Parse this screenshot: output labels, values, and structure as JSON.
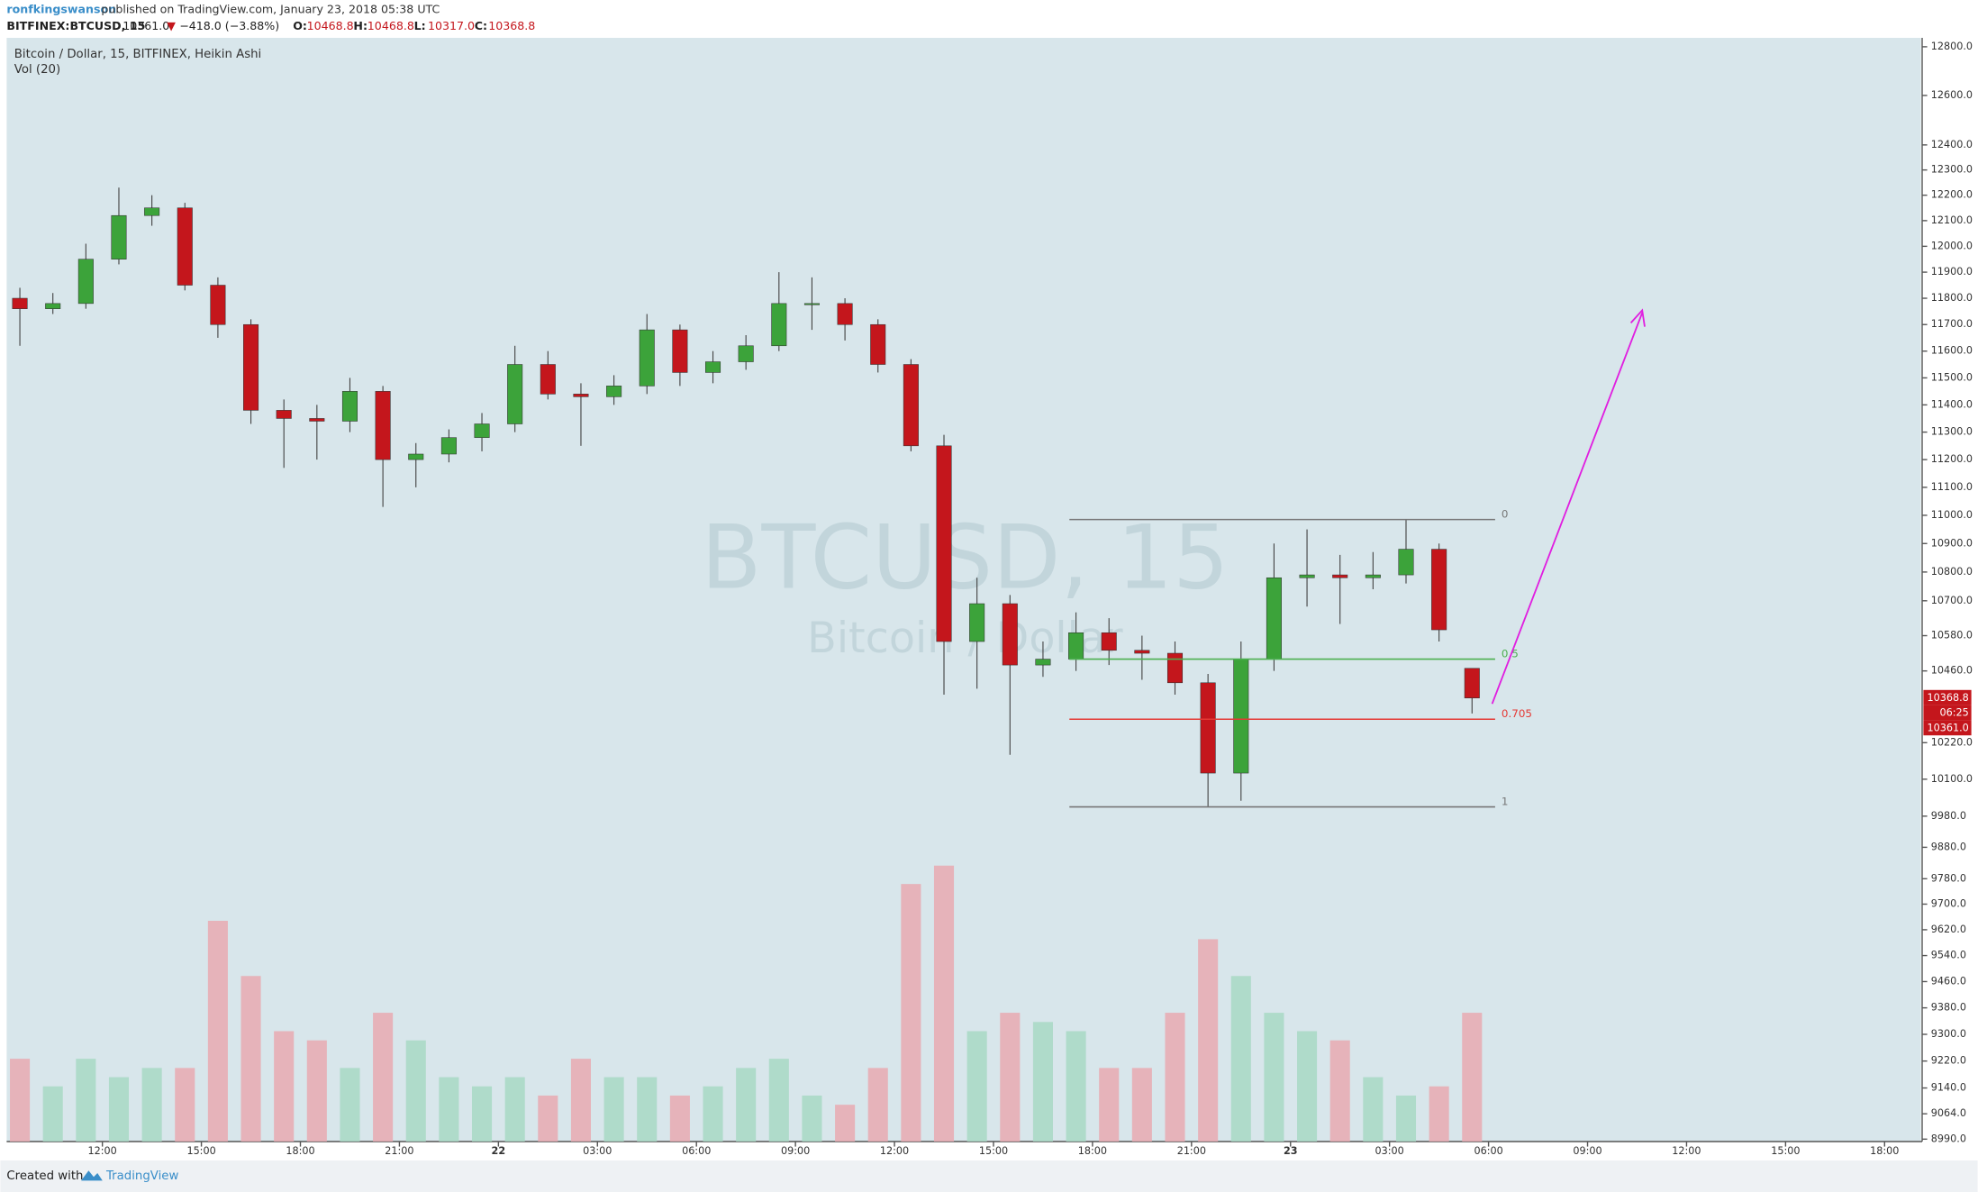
{
  "header": {
    "user": "ronfkingswanson",
    "published": "published on TradingView.com, January 23, 2018 05:38 UTC",
    "symbol": "BITFINEX:BTCUSD, 15",
    "last": "10361.0",
    "arrow": "▼",
    "change": "−418.0 (−3.88%)",
    "ohlc": [
      [
        "O:",
        "10468.8"
      ],
      [
        "H:",
        "10468.8"
      ],
      [
        "L:",
        "10317.0"
      ],
      [
        "C:",
        "10368.8"
      ]
    ]
  },
  "footer": {
    "created": "Created with",
    "brand": "TradingView"
  },
  "chart_data": {
    "type": "candlestick",
    "title": "Bitcoin / Dollar, 15, BITFINEX, Heikin Ashi",
    "subtitle": "Vol (20)",
    "watermark": "BTCUSD, 15",
    "watermark_sub": "Bitcoin / Dollar",
    "x": [
      9.5,
      10.5,
      11.5,
      12.5,
      13.5,
      14.5,
      15.5,
      16.5,
      17.5,
      18.5,
      19.5,
      20.5,
      21.5,
      22.5,
      23.5,
      24.5,
      25.5,
      26.5,
      27.5,
      28.5,
      29.5,
      30.5,
      31.5,
      32.5,
      33.5,
      34.5,
      35.5,
      36.5,
      37.5,
      38.5,
      39.5,
      40.5,
      41.5,
      42.5,
      43.5,
      44.5,
      45.5,
      46.5,
      47.5,
      48.5,
      49.5,
      50.5,
      51.5,
      52.5,
      53.5
    ],
    "open": [
      11800,
      11760,
      11780,
      11950,
      12120,
      12150,
      11850,
      11700,
      11380,
      11350,
      11340,
      11450,
      11200,
      11220,
      11280,
      11330,
      11550,
      11440,
      11430,
      11470,
      11680,
      11520,
      11560,
      11620,
      11780,
      11780,
      11700,
      11550,
      11250,
      10560,
      10690,
      10480,
      10500,
      10590,
      10530,
      10520,
      10420,
      10120,
      10500,
      10780,
      10790,
      10780,
      10790,
      10880,
      10468.8
    ],
    "high": [
      11840,
      11820,
      12010,
      12230,
      12200,
      12170,
      11880,
      11720,
      11420,
      11400,
      11500,
      11470,
      11260,
      11310,
      11370,
      11620,
      11600,
      11480,
      11510,
      11740,
      11700,
      11600,
      11660,
      11900,
      11880,
      11800,
      11720,
      11570,
      11290,
      10780,
      10720,
      10560,
      10660,
      10640,
      10580,
      10560,
      10450,
      10560,
      10900,
      10950,
      10860,
      10870,
      10985,
      10900,
      10468.8
    ],
    "low": [
      11620,
      11740,
      11760,
      11930,
      12080,
      11830,
      11650,
      11330,
      11170,
      11200,
      11300,
      11030,
      11100,
      11190,
      11230,
      11300,
      11420,
      11250,
      11400,
      11440,
      11470,
      11480,
      11530,
      11600,
      11680,
      11640,
      11520,
      11230,
      10380,
      10400,
      10180,
      10440,
      10460,
      10480,
      10430,
      10380,
      10010,
      10030,
      10460,
      10680,
      10620,
      10740,
      10760,
      10560,
      10317
    ],
    "close": [
      11760,
      11780,
      11950,
      12120,
      12150,
      11850,
      11700,
      11380,
      11350,
      11340,
      11450,
      11200,
      11220,
      11280,
      11330,
      11550,
      11440,
      11430,
      11470,
      11680,
      11520,
      11560,
      11620,
      11780,
      11780,
      11700,
      11550,
      11250,
      10560,
      10690,
      10480,
      10500,
      10590,
      10530,
      10520,
      10420,
      10120,
      10500,
      10780,
      10790,
      10780,
      10790,
      10880,
      10600,
      10368.8
    ],
    "up_color": "#3ca33a",
    "down_color": "#c4161c",
    "volume": {
      "values": [
        45,
        30,
        45,
        35,
        40,
        40,
        120,
        90,
        60,
        55,
        40,
        70,
        55,
        35,
        30,
        35,
        25,
        45,
        35,
        35,
        25,
        30,
        40,
        45,
        25,
        20,
        40,
        140,
        150,
        60,
        70,
        65,
        60,
        40,
        40,
        70,
        110,
        90,
        70,
        60,
        55,
        35,
        25,
        30,
        70
      ],
      "lim": [
        0,
        600
      ],
      "up_color": "#a8d8c4",
      "down_color": "#e9a9b2"
    },
    "log_scale": true,
    "grid": false,
    "xlim": [
      9.1,
      67.1
    ],
    "xticks": [
      {
        "value": 12,
        "label": "12:00"
      },
      {
        "value": 15,
        "label": "15:00"
      },
      {
        "value": 18,
        "label": "18:00"
      },
      {
        "value": 21,
        "label": "21:00"
      },
      {
        "value": 24,
        "label": "22"
      },
      {
        "value": 27,
        "label": "03:00"
      },
      {
        "value": 30,
        "label": "06:00"
      },
      {
        "value": 33,
        "label": "09:00"
      },
      {
        "value": 36,
        "label": "12:00"
      },
      {
        "value": 39,
        "label": "15:00"
      },
      {
        "value": 42,
        "label": "18:00"
      },
      {
        "value": 45,
        "label": "21:00"
      },
      {
        "value": 48,
        "label": "23"
      },
      {
        "value": 51,
        "label": "03:00"
      },
      {
        "value": 54,
        "label": "06:00"
      },
      {
        "value": 57,
        "label": "09:00"
      },
      {
        "value": 60,
        "label": "12:00"
      },
      {
        "value": 63,
        "label": "15:00"
      },
      {
        "value": 66,
        "label": "18:00"
      }
    ],
    "ylim": [
      8983,
      12837
    ],
    "yticks": [
      {
        "value": 12800,
        "label": "12800.0"
      },
      {
        "value": 12600,
        "label": "12600.0"
      },
      {
        "value": 12400,
        "label": "12400.0"
      },
      {
        "value": 12300,
        "label": "12300.0"
      },
      {
        "value": 12200,
        "label": "12200.0"
      },
      {
        "value": 12100,
        "label": "12100.0"
      },
      {
        "value": 12000,
        "label": "12000.0"
      },
      {
        "value": 11900,
        "label": "11900.0"
      },
      {
        "value": 11800,
        "label": "11800.0"
      },
      {
        "value": 11700,
        "label": "11700.0"
      },
      {
        "value": 11600,
        "label": "11600.0"
      },
      {
        "value": 11500,
        "label": "11500.0"
      },
      {
        "value": 11400,
        "label": "11400.0"
      },
      {
        "value": 11300,
        "label": "11300.0"
      },
      {
        "value": 11200,
        "label": "11200.0"
      },
      {
        "value": 11100,
        "label": "11100.0"
      },
      {
        "value": 11000,
        "label": "11000.0"
      },
      {
        "value": 10900,
        "label": "10900.0"
      },
      {
        "value": 10800,
        "label": "10800.0"
      },
      {
        "value": 10700,
        "label": "10700.0"
      },
      {
        "value": 10580,
        "label": "10580.0"
      },
      {
        "value": 10460,
        "label": "10460.0"
      },
      {
        "value": 10220,
        "label": "10220.0"
      },
      {
        "value": 10100,
        "label": "10100.0"
      },
      {
        "value": 9980,
        "label": "9980.0"
      },
      {
        "value": 9880,
        "label": "9880.0"
      },
      {
        "value": 9780,
        "label": "9780.0"
      },
      {
        "value": 9700,
        "label": "9700.0"
      },
      {
        "value": 9620,
        "label": "9620.0"
      },
      {
        "value": 9540,
        "label": "9540.0"
      },
      {
        "value": 9460,
        "label": "9460.0"
      },
      {
        "value": 9380,
        "label": "9380.0"
      },
      {
        "value": 9300,
        "label": "9300.0"
      },
      {
        "value": 9220,
        "label": "9220.0"
      },
      {
        "value": 9140,
        "label": "9140.0"
      },
      {
        "value": 9064,
        "label": "9064.0"
      },
      {
        "value": 8990,
        "label": "8990.0"
      }
    ],
    "fib": {
      "levels": [
        0,
        0.5,
        0.705,
        1
      ],
      "prices": [
        10985,
        10500,
        10298,
        10010
      ],
      "colors": [
        "#777777",
        "#4caf50",
        "#e53935",
        "#777777"
      ],
      "x_range": [
        41.3,
        54.2
      ]
    },
    "price_tags": [
      "10368.8",
      "06:25",
      "10361.0"
    ]
  }
}
